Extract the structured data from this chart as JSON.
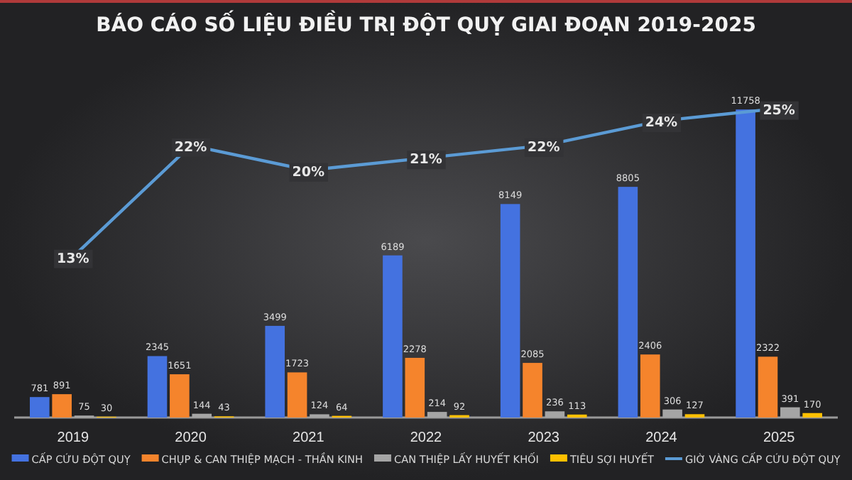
{
  "chart_data": {
    "type": "bar",
    "title": "BÁO CÁO SỐ LIỆU ĐIỀU TRỊ ĐỘT QUỴ GIAI ĐOẠN 2019-2025",
    "categories": [
      "2019",
      "2020",
      "2021",
      "2022",
      "2023",
      "2024",
      "2025"
    ],
    "series": [
      {
        "name": "CẤP CỨU ĐỘT QUỴ",
        "color": "#4472e0",
        "values": [
          781,
          2345,
          3499,
          6189,
          8149,
          8805,
          11758
        ]
      },
      {
        "name": "CHỤP & CAN THIỆP MẠCH - THẦN KINH",
        "color": "#f5842c",
        "values": [
          891,
          1651,
          1723,
          2278,
          2085,
          2406,
          2322
        ]
      },
      {
        "name": "CAN THIỆP LẤY HUYẾT KHỐI",
        "color": "#a5a5a5",
        "values": [
          75,
          144,
          124,
          214,
          236,
          306,
          391
        ]
      },
      {
        "name": "TIÊU SỢI HUYẾT",
        "color": "#ffc000",
        "values": [
          30,
          43,
          64,
          92,
          113,
          127,
          170
        ]
      },
      {
        "name": "GIỜ VÀNG CẤP CỨU ĐỘT QUỴ",
        "color": "#5b9bd5",
        "type": "line",
        "axis": "y2",
        "values": [
          13,
          22,
          20,
          21,
          22,
          24,
          25
        ],
        "value_labels": [
          "13%",
          "22%",
          "20%",
          "21%",
          "22%",
          "24%",
          "25%"
        ]
      }
    ],
    "tick_labels": "x",
    "data_labels": true,
    "legend": "bottom",
    "grid": false
  }
}
